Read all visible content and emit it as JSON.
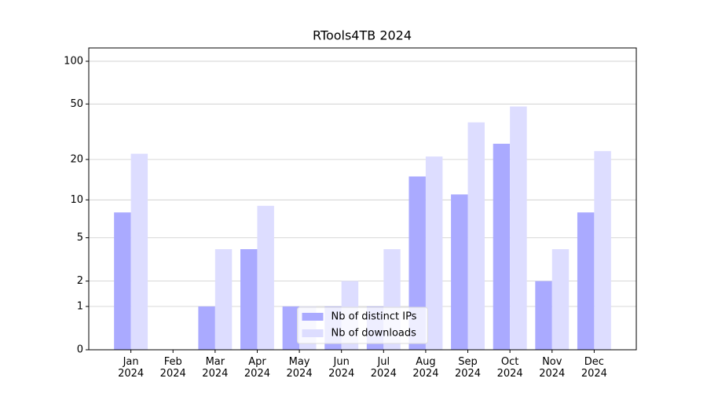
{
  "chart_data": {
    "type": "bar",
    "title": "RTools4TB 2024",
    "yscale": "log1p",
    "categories": [
      "Jan\n2024",
      "Feb\n2024",
      "Mar\n2024",
      "Apr\n2024",
      "May\n2024",
      "Jun\n2024",
      "Jul\n2024",
      "Aug\n2024",
      "Sep\n2024",
      "Oct\n2024",
      "Nov\n2024",
      "Dec\n2024"
    ],
    "series": [
      {
        "name": "Nb of distinct IPs",
        "color": "#aaaaff",
        "values": [
          8,
          0,
          1,
          4,
          1,
          1,
          1,
          15,
          11,
          26,
          2,
          8
        ]
      },
      {
        "name": "Nb of downloads",
        "color": "#ddddff",
        "values": [
          22,
          0,
          4,
          9,
          1,
          2,
          4,
          21,
          37,
          48,
          4,
          23
        ]
      }
    ],
    "ylim": [
      0,
      124
    ],
    "yticks": [
      0,
      1,
      2,
      5,
      10,
      20,
      50,
      100
    ],
    "grid": true,
    "legend": "lower center"
  }
}
